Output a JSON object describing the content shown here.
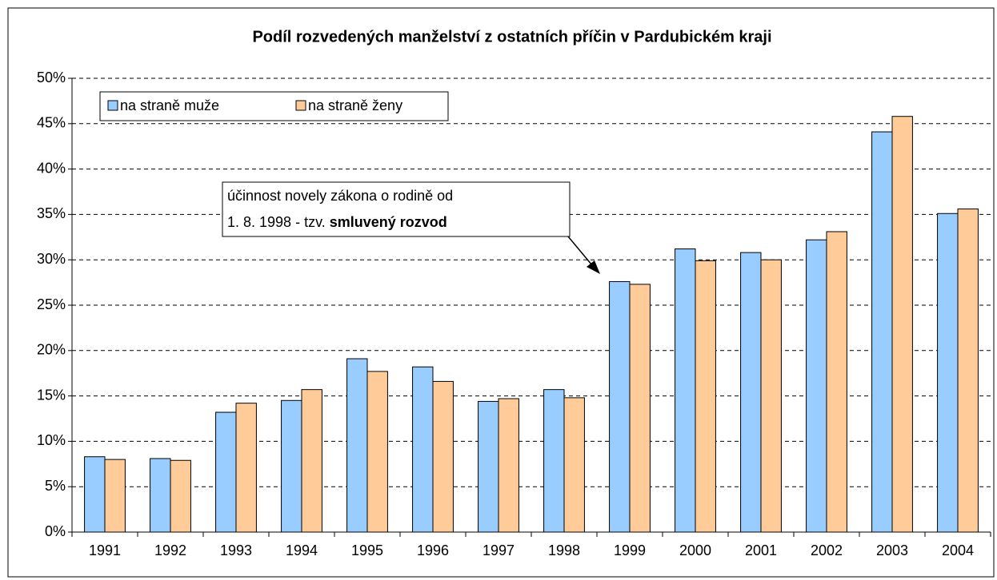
{
  "chart_data": {
    "type": "bar",
    "title": "Podíl rozvedených manželství z ostatních příčin v Pardubickém kraji",
    "categories": [
      "1991",
      "1992",
      "1993",
      "1994",
      "1995",
      "1996",
      "1997",
      "1998",
      "1999",
      "2000",
      "2001",
      "2002",
      "2003",
      "2004"
    ],
    "series": [
      {
        "name": "na straně muže",
        "color": "#99ccff",
        "values": [
          8.3,
          8.1,
          13.2,
          14.5,
          19.1,
          18.2,
          14.4,
          15.7,
          27.6,
          31.2,
          30.8,
          32.2,
          44.1,
          35.1
        ]
      },
      {
        "name": "na straně ženy",
        "color": "#ffcc99",
        "values": [
          8.0,
          7.9,
          14.2,
          15.7,
          17.7,
          16.6,
          14.7,
          14.8,
          27.3,
          29.9,
          30.0,
          33.1,
          45.8,
          35.6
        ]
      }
    ],
    "ylim": [
      0,
      50
    ],
    "yticks": [
      {
        "value": 0,
        "label": "0%"
      },
      {
        "value": 5,
        "label": "5%"
      },
      {
        "value": 10,
        "label": "10%"
      },
      {
        "value": 15,
        "label": "15%"
      },
      {
        "value": 20,
        "label": "20%"
      },
      {
        "value": 25,
        "label": "25%"
      },
      {
        "value": 30,
        "label": "30%"
      },
      {
        "value": 35,
        "label": "35%"
      },
      {
        "value": 40,
        "label": "40%"
      },
      {
        "value": 45,
        "label": "45%"
      },
      {
        "value": 50,
        "label": "50%"
      }
    ],
    "grid": true,
    "legend": "top-left",
    "annotation": {
      "line1": "účinnost novely zákona o rodině od",
      "line2": "1. 8. 1998 - tzv.",
      "line2_bold": "smluvený rozvod"
    }
  }
}
